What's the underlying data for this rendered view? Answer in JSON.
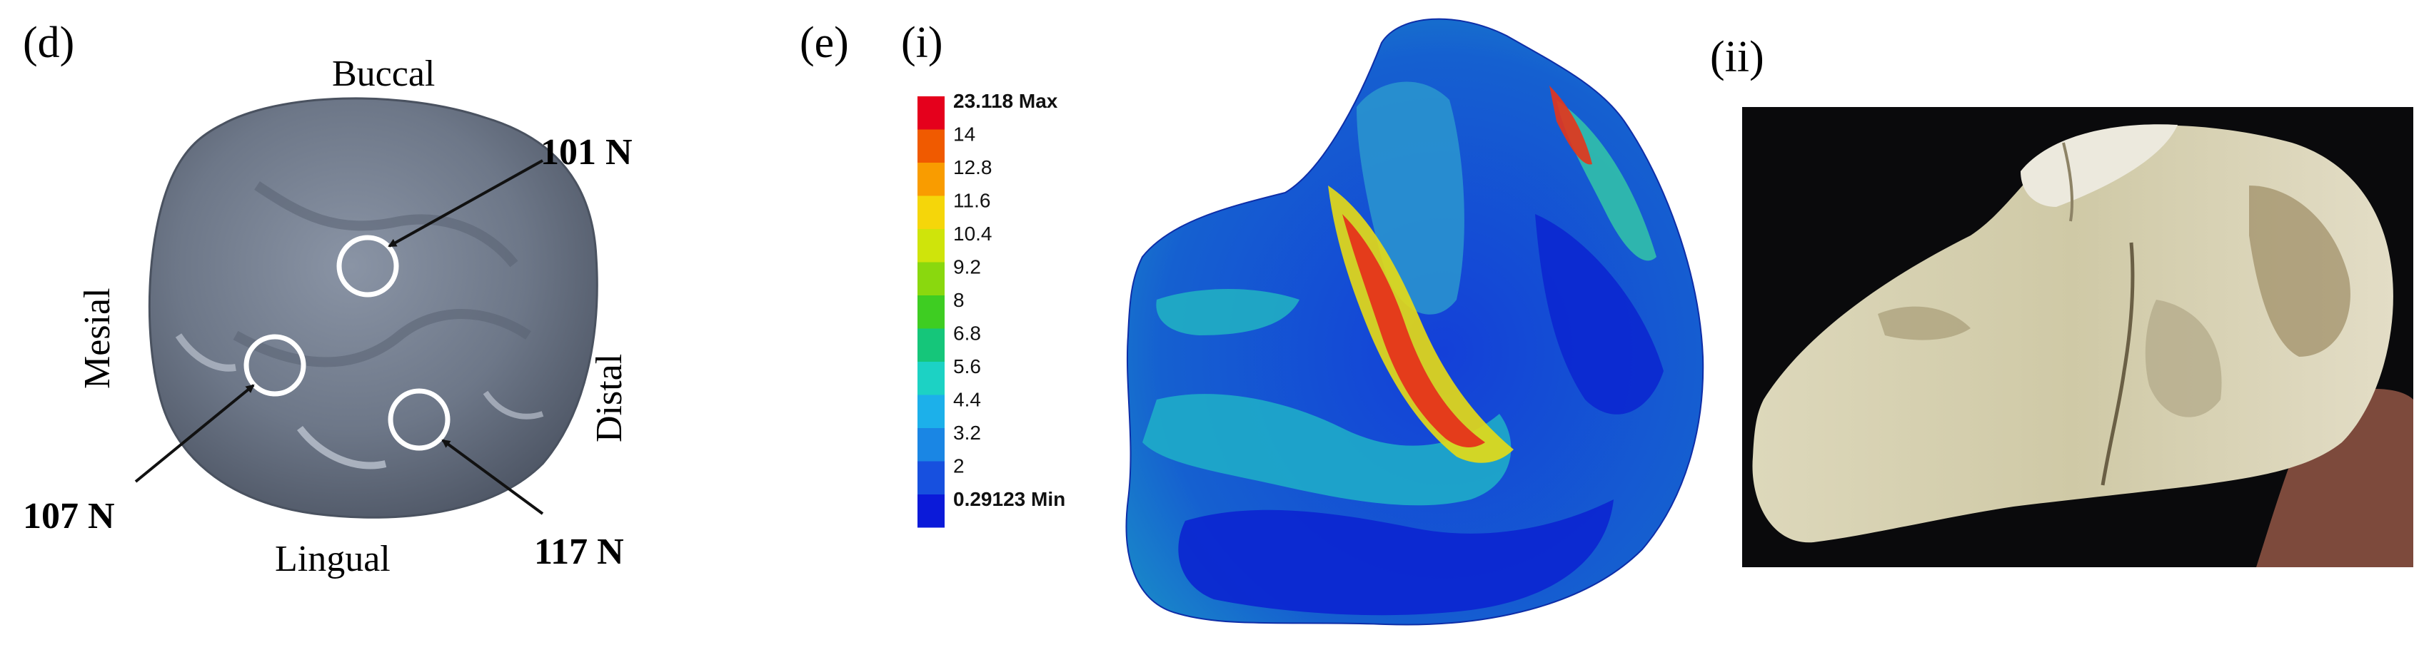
{
  "panel_d": {
    "label": "(d)",
    "orientation": {
      "top": "Buccal",
      "bottom": "Lingual",
      "left": "Mesial",
      "right": "Distal"
    },
    "loads": [
      {
        "label": "101 N"
      },
      {
        "label": "107 N"
      },
      {
        "label": "117 N"
      }
    ],
    "colors": {
      "tooth": "#6d7788",
      "marker": "#ffffff"
    }
  },
  "panel_e": {
    "label": "(e)",
    "sub_i": "(i)",
    "sub_ii": "(ii)",
    "legend": {
      "levels": [
        "23.118 Max",
        "14",
        "12.8",
        "11.6",
        "10.4",
        "9.2",
        "8",
        "6.8",
        "5.6",
        "4.4",
        "3.2",
        "2",
        "0.29123 Min"
      ],
      "colors": [
        "#e5001c",
        "#f05a00",
        "#f99c00",
        "#f5d60a",
        "#cfe40b",
        "#8ad80e",
        "#3ecd22",
        "#15c67a",
        "#1cd2c4",
        "#1cb0ea",
        "#1a86e4",
        "#1750df",
        "#0b1ad9"
      ]
    },
    "colors": {
      "stress_low": "#0d2fd0",
      "stress_mid": "#22b5c9",
      "stress_high": "#e02a12",
      "photo_bg": "#0a0a0c",
      "tooth_photo": "#d8d2b4"
    }
  }
}
